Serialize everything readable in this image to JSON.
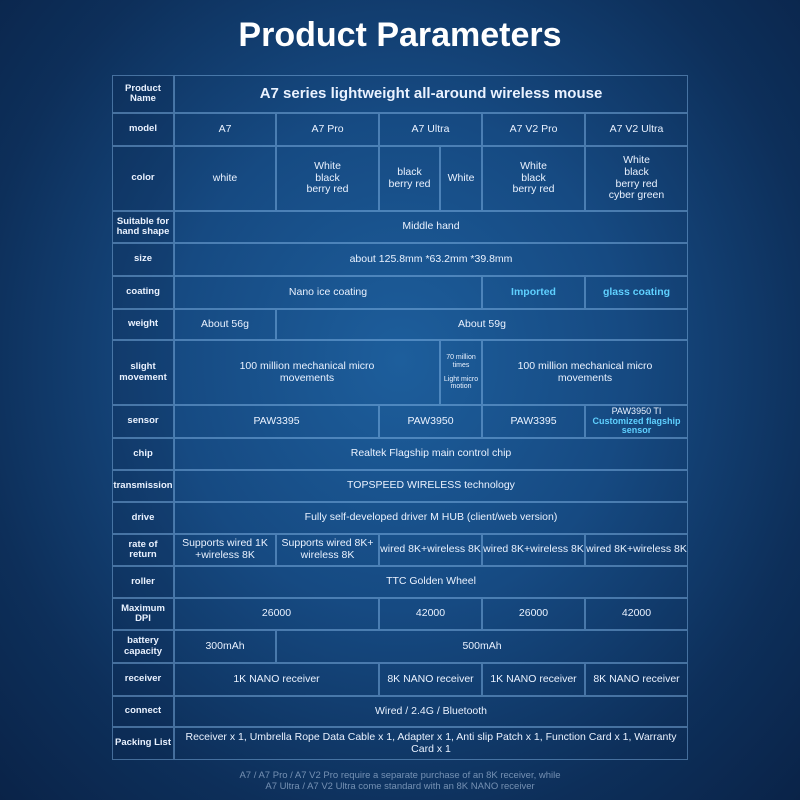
{
  "header": {
    "title": "Product Parameters"
  },
  "table": {
    "rows": [
      {
        "label": "Product\nName",
        "cells": [
          "A7 series lightweight all-around wireless mouse"
        ]
      },
      {
        "label": "model",
        "cells": [
          "A7",
          "A7 Pro",
          "A7 Ultra",
          "A7 V2 Pro",
          "A7 V2 Ultra"
        ]
      },
      {
        "label": "color",
        "cells": [
          "white",
          "White\nblack\nberry red",
          "black\nberry red",
          "White",
          "White\nblack\nberry red",
          "White\nblack\nberry red\ncyber green"
        ]
      },
      {
        "label": "Suitable for\nhand shape",
        "cells": [
          "Middle hand"
        ]
      },
      {
        "label": "size",
        "cells": [
          "about 125.8mm *63.2mm *39.8mm"
        ]
      },
      {
        "label": "coating",
        "cells": [
          "Nano ice coating",
          "Imported",
          "glass coating"
        ]
      },
      {
        "label": "weight",
        "cells": [
          "About 56g",
          "About 59g"
        ]
      },
      {
        "label": "slight\nmovement",
        "cells": [
          "100 million mechanical micro\nmovements",
          [
            "70 million\ntimes",
            "Light micro\nmotion"
          ],
          "100 million mechanical micro\nmovements"
        ]
      },
      {
        "label": "sensor",
        "cells": [
          "PAW3395",
          "PAW3950",
          "PAW3395",
          [
            "PAW3950 TI",
            "Customized flagship\nsensor"
          ]
        ]
      },
      {
        "label": "chip",
        "cells": [
          "Realtek Flagship main control chip"
        ]
      },
      {
        "label": "transmission",
        "cells": [
          "TOPSPEED WIRELESS technology"
        ]
      },
      {
        "label": "drive",
        "cells": [
          "Fully self-developed driver M HUB (client/web version)"
        ]
      },
      {
        "label": "rate of\nreturn",
        "cells": [
          "Supports wired 1K\n+wireless 8K",
          "Supports wired 8K+\nwireless 8K",
          "wired 8K+wireless 8K",
          "wired 8K+wireless 8K",
          "wired 8K+wireless 8K"
        ]
      },
      {
        "label": "roller",
        "cells": [
          "TTC Golden Wheel"
        ]
      },
      {
        "label": "Maximum\nDPI",
        "cells": [
          "26000",
          "42000",
          "26000",
          "42000"
        ]
      },
      {
        "label": "battery\ncapacity",
        "cells": [
          "300mAh",
          "500mAh"
        ]
      },
      {
        "label": "receiver",
        "cells": [
          "1K NANO receiver",
          "8K NANO receiver",
          "1K NANO receiver",
          "8K NANO receiver"
        ]
      },
      {
        "label": "connect",
        "cells": [
          "Wired / 2.4G / Bluetooth"
        ]
      },
      {
        "label": "Packing List",
        "cells": [
          "Receiver x 1, Umbrella Rope Data Cable x 1, Adapter x 1, Anti slip Patch x 1, Function Card x 1, Warranty Card x 1"
        ]
      }
    ]
  },
  "footer": {
    "note": "A7 / A7 Pro / A7 V2 Pro require a separate purchase of an 8K receiver, while\nA7 Ultra / A7 V2 Ultra come standard with an 8K NANO receiver"
  }
}
